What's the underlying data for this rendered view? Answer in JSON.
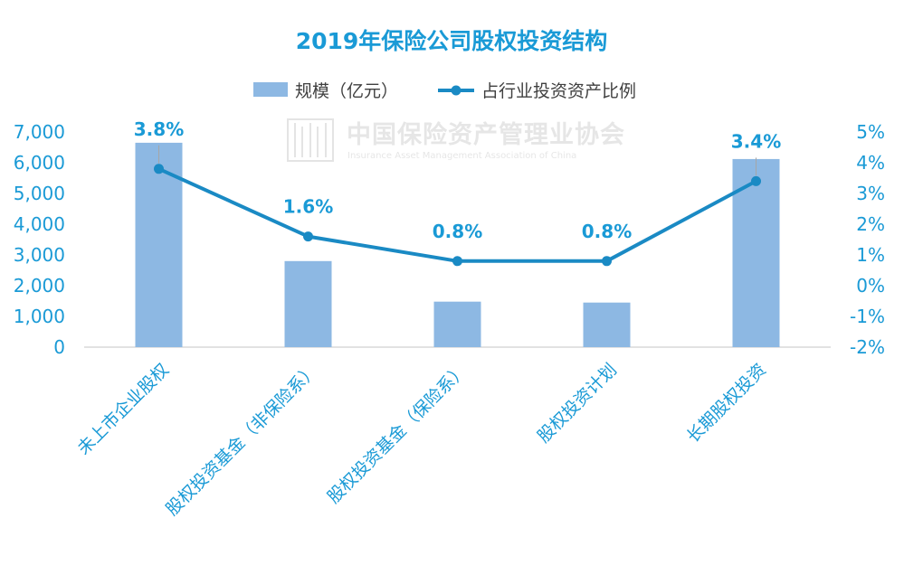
{
  "chart_data": {
    "type": "bar",
    "title": "2019年保险公司股权投资结构",
    "categories": [
      "未上市企业股权",
      "股权投资基金（非保险系）",
      "股权投资基金（保险系）",
      "股权投资计划",
      "长期股权投资"
    ],
    "series": [
      {
        "name": "规模（亿元）",
        "type": "bar",
        "axis": "left",
        "values": [
          6650,
          2800,
          1480,
          1450,
          6120
        ]
      },
      {
        "name": "占行业投资资产比例",
        "type": "line",
        "axis": "right",
        "values": [
          3.8,
          1.6,
          0.8,
          0.8,
          3.4
        ],
        "data_labels": [
          "3.8%",
          "1.6%",
          "0.8%",
          "0.8%",
          "3.4%"
        ]
      }
    ],
    "y_left": {
      "lim": [
        0,
        7000
      ],
      "ticks": [
        0,
        1000,
        2000,
        3000,
        4000,
        5000,
        6000,
        7000
      ],
      "tick_labels": [
        "0",
        "1,000",
        "2,000",
        "3,000",
        "4,000",
        "5,000",
        "6,000",
        "7,000"
      ]
    },
    "y_right": {
      "lim": [
        -2,
        5
      ],
      "ticks": [
        -2,
        -1,
        0,
        1,
        2,
        3,
        4,
        5
      ],
      "tick_labels": [
        "-2%",
        "-1%",
        "0%",
        "1%",
        "2%",
        "3%",
        "4%",
        "5%"
      ]
    },
    "grid": false,
    "legend_position": "top-center",
    "colors": {
      "title": "#1a9ad6",
      "bar": "#8db8e3",
      "line": "#1a8ac4",
      "axis_text": "#1a9ad6",
      "axis_line": "#d9d9d9"
    }
  },
  "watermark": {
    "text_cn": "中国保险资产管理业协会",
    "text_en": "Insurance Asset Management Association of China",
    "icon": "association-logo-icon"
  }
}
